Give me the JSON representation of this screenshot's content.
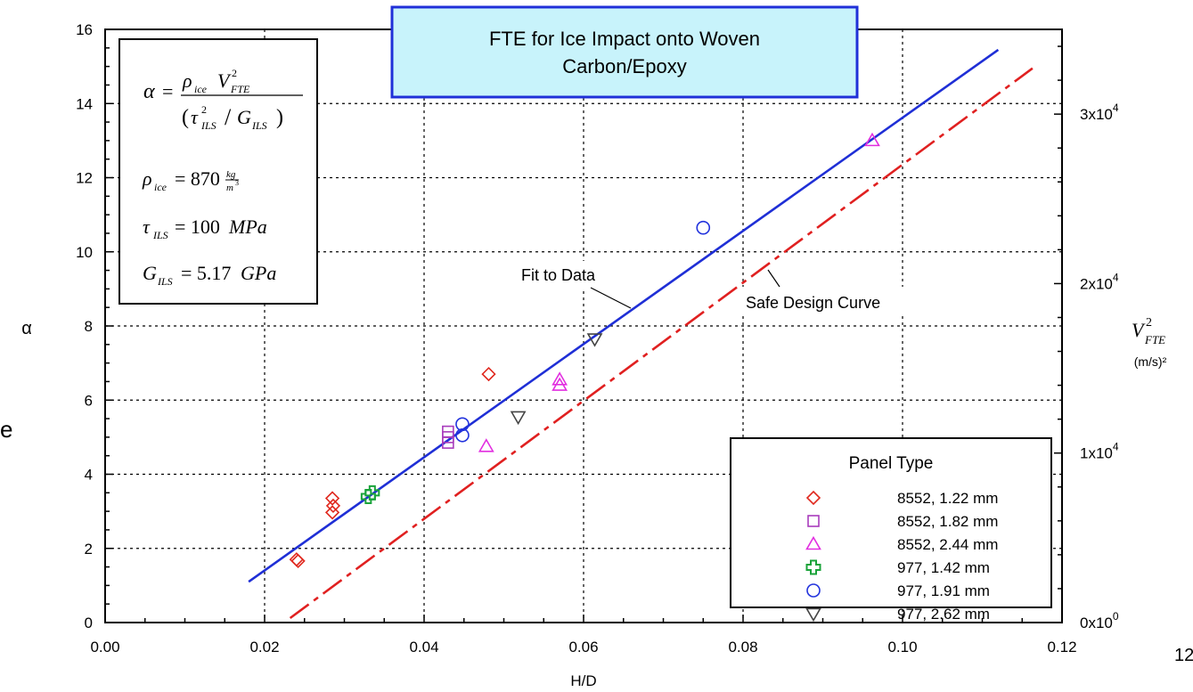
{
  "chart_data": {
    "type": "scatter",
    "title_lines": [
      "FTE for Ice Impact onto Woven",
      "Carbon/Epoxy"
    ],
    "xlabel": "H/D",
    "ylabel": "α",
    "y2label_unit": "(m/s)²",
    "xlim": [
      0,
      0.12
    ],
    "ylim": [
      0,
      16
    ],
    "y2lim": [
      0,
      35000
    ],
    "grid": true,
    "x_ticks": [
      "0.00",
      "0.02",
      "0.04",
      "0.06",
      "0.08",
      "0.10",
      "0.12"
    ],
    "y_ticks": [
      "0",
      "2",
      "4",
      "6",
      "8",
      "10",
      "12",
      "14",
      "16"
    ],
    "y2_ticks": [
      {
        "value": 0,
        "mant": "0x10",
        "exp": "0"
      },
      {
        "value": 10000,
        "mant": "1x10",
        "exp": "4"
      },
      {
        "value": 20000,
        "mant": "2x10",
        "exp": "4"
      },
      {
        "value": 30000,
        "mant": "3x10",
        "exp": "4"
      }
    ],
    "legend": {
      "title": "Panel Type",
      "position": "bottom-right"
    },
    "series": [
      {
        "name": "8552, 1.22 mm",
        "marker": "diamond",
        "color": "#e0281e",
        "points": [
          [
            0.024,
            1.7
          ],
          [
            0.0242,
            1.66
          ],
          [
            0.0285,
            3.35
          ],
          [
            0.0286,
            3.15
          ],
          [
            0.0285,
            2.97
          ],
          [
            0.0481,
            6.7
          ]
        ]
      },
      {
        "name": "8552, 1.82 mm",
        "marker": "square",
        "color": "#a83cbc",
        "points": [
          [
            0.043,
            5.15
          ],
          [
            0.043,
            5.0
          ],
          [
            0.043,
            4.85
          ]
        ]
      },
      {
        "name": "8552, 2.44 mm",
        "marker": "triangle-up",
        "color": "#e22ee0",
        "points": [
          [
            0.0478,
            4.75
          ],
          [
            0.057,
            6.55
          ],
          [
            0.057,
            6.4
          ],
          [
            0.0962,
            13.0
          ]
        ]
      },
      {
        "name": "977, 1.42 mm",
        "marker": "cross",
        "color": "#1aa33a",
        "points": [
          [
            0.0335,
            3.5
          ],
          [
            0.033,
            3.4
          ]
        ]
      },
      {
        "name": "977, 1.91 mm",
        "marker": "circle",
        "color": "#2233dd",
        "points": [
          [
            0.0448,
            5.35
          ],
          [
            0.0448,
            5.05
          ],
          [
            0.075,
            10.65
          ]
        ]
      },
      {
        "name": "977, 2.62 mm",
        "marker": "triangle-down",
        "color": "#444444",
        "points": [
          [
            0.0518,
            5.55
          ],
          [
            0.0614,
            7.65
          ]
        ]
      }
    ],
    "lines": [
      {
        "name": "Fit to Data",
        "color": "#1f2fd6",
        "style": "solid",
        "x": [
          0.018,
          0.112
        ],
        "y": [
          1.1,
          15.45
        ]
      },
      {
        "name": "Safe Design Curve",
        "color": "#e02020",
        "style": "dashdot",
        "x": [
          0.0232,
          0.1163
        ],
        "y": [
          0.12,
          14.95
        ]
      }
    ],
    "annotations": [
      "Fit to Data",
      "Safe Design Curve"
    ]
  },
  "formula_box": {
    "alpha_def": "α = ρ_ice V²_FTE / (τ²_ILS / G_ILS)",
    "rho": "ρ_ice = 870 kg/m³",
    "tau": "τ_ILS = 100 MPa",
    "G": "G_ILS = 5.17 GPa"
  },
  "colors": {
    "fit": "#1f2fd6",
    "safe": "#e02020",
    "title_bg": "#c8f3fb",
    "title_border": "#2030d8"
  }
}
